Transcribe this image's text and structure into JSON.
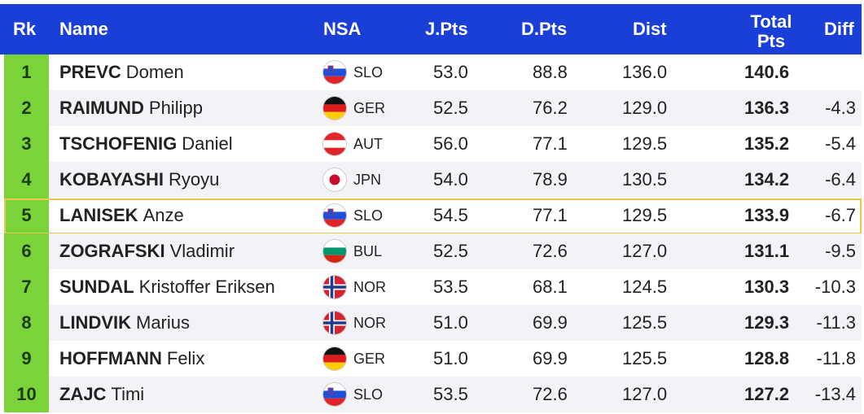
{
  "header": {
    "rk": "Rk",
    "name": "Name",
    "nsa": "NSA",
    "jpts": "J.Pts",
    "dpts": "D.Pts",
    "dist": "Dist",
    "total_line1": "Total",
    "total_line2": "Pts",
    "diff": "Diff"
  },
  "colors": {
    "header_bg": "#1a3fd6",
    "rank_bg": "#7bd33a",
    "highlight_border": "#f0c74a",
    "alt_row_bg": "#f3f3f7"
  },
  "rows": [
    {
      "rk": "1",
      "last": "PREVC",
      "first": "Domen",
      "flag_icon": "slovenia-flag-icon",
      "nsa": "SLO",
      "jpts": "53.0",
      "dpts": "88.8",
      "dist": "136.0",
      "total": "140.6",
      "diff": ""
    },
    {
      "rk": "2",
      "last": "RAIMUND",
      "first": "Philipp",
      "flag_icon": "germany-flag-icon",
      "nsa": "GER",
      "jpts": "52.5",
      "dpts": "76.2",
      "dist": "129.0",
      "total": "136.3",
      "diff": "-4.3"
    },
    {
      "rk": "3",
      "last": "TSCHOFENIG",
      "first": "Daniel",
      "flag_icon": "austria-flag-icon",
      "nsa": "AUT",
      "jpts": "56.0",
      "dpts": "77.1",
      "dist": "129.5",
      "total": "135.2",
      "diff": "-5.4"
    },
    {
      "rk": "4",
      "last": "KOBAYASHI",
      "first": "Ryoyu",
      "flag_icon": "japan-flag-icon",
      "nsa": "JPN",
      "jpts": "54.0",
      "dpts": "78.9",
      "dist": "130.5",
      "total": "134.2",
      "diff": "-6.4"
    },
    {
      "rk": "5",
      "last": "LANISEK",
      "first": "Anze",
      "flag_icon": "slovenia-flag-icon",
      "nsa": "SLO",
      "jpts": "54.5",
      "dpts": "77.1",
      "dist": "129.5",
      "total": "133.9",
      "diff": "-6.7"
    },
    {
      "rk": "6",
      "last": "ZOGRAFSKI",
      "first": "Vladimir",
      "flag_icon": "bulgaria-flag-icon",
      "nsa": "BUL",
      "jpts": "52.5",
      "dpts": "72.6",
      "dist": "127.0",
      "total": "131.1",
      "diff": "-9.5"
    },
    {
      "rk": "7",
      "last": "SUNDAL",
      "first": "Kristoffer Eriksen",
      "flag_icon": "norway-flag-icon",
      "nsa": "NOR",
      "jpts": "53.5",
      "dpts": "68.1",
      "dist": "124.5",
      "total": "130.3",
      "diff": "-10.3"
    },
    {
      "rk": "8",
      "last": "LINDVIK",
      "first": "Marius",
      "flag_icon": "norway-flag-icon",
      "nsa": "NOR",
      "jpts": "51.0",
      "dpts": "69.9",
      "dist": "125.5",
      "total": "129.3",
      "diff": "-11.3"
    },
    {
      "rk": "9",
      "last": "HOFFMANN",
      "first": "Felix",
      "flag_icon": "germany-flag-icon",
      "nsa": "GER",
      "jpts": "51.0",
      "dpts": "69.9",
      "dist": "125.5",
      "total": "128.8",
      "diff": "-11.8"
    },
    {
      "rk": "10",
      "last": "ZAJC",
      "first": "Timi",
      "flag_icon": "slovenia-flag-icon",
      "nsa": "SLO",
      "jpts": "53.5",
      "dpts": "72.6",
      "dist": "127.0",
      "total": "127.2",
      "diff": "-13.4"
    }
  ]
}
